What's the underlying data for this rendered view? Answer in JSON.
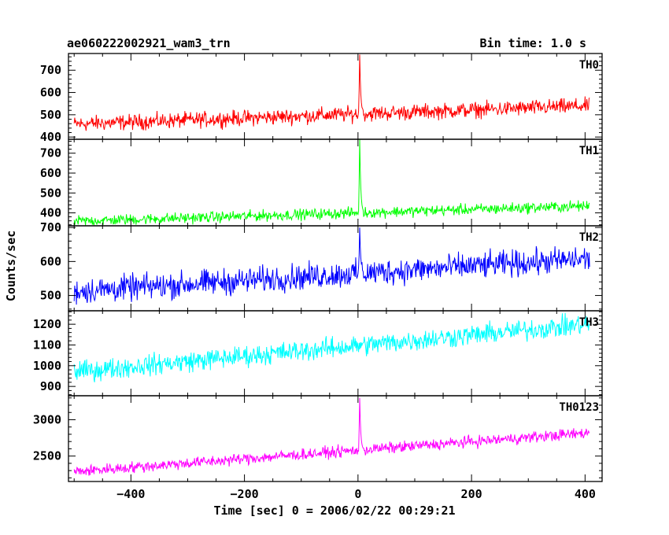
{
  "header": {
    "left": "ae060222002921_wam3_trn",
    "right": "Bin time: 1.0 s"
  },
  "chart_data": {
    "type": "line",
    "title": "ae060222002921_wam3_trn",
    "subtitle": "Bin time: 1.0 s",
    "xlabel": "Time [sec] 0 = 2006/02/22 00:29:21",
    "ylabel": "Counts/sec",
    "xlim": [
      -510,
      430
    ],
    "x_ticks": [
      -400,
      -200,
      0,
      200,
      400
    ],
    "x_tick_labels": [
      "−400",
      "−200",
      "0",
      "200",
      "400"
    ],
    "x_start": -500,
    "x_end": 408,
    "legend": "none",
    "panels": [
      {
        "label": "TH0",
        "color": "#ff0000",
        "ylim": [
          390,
          775
        ],
        "y_ticks": [
          400,
          500,
          600,
          700
        ],
        "y_tick_labels": [
          "400",
          "500",
          "600",
          "700"
        ],
        "baseline_start": 458,
        "baseline_end": 540,
        "noise_amplitude": 38,
        "peak_x": 3,
        "peak_value": 770
      },
      {
        "label": "TH1",
        "color": "#00ff00",
        "ylim": [
          335,
          770
        ],
        "y_ticks": [
          400,
          500,
          600,
          700
        ],
        "y_tick_labels": [
          "400",
          "500",
          "600",
          "700"
        ],
        "baseline_start": 358,
        "baseline_end": 435,
        "noise_amplitude": 30,
        "peak_x": 3,
        "peak_value": 770
      },
      {
        "label": "TH2",
        "color": "#0000ff",
        "ylim": [
          455,
          705
        ],
        "y_ticks": [
          500,
          600,
          700
        ],
        "y_tick_labels": [
          "500",
          "600",
          "700"
        ],
        "baseline_start": 512,
        "baseline_end": 608,
        "noise_amplitude": 42,
        "peak_x": 3,
        "peak_value": 700
      },
      {
        "label": "TH3",
        "color": "#00ffff",
        "ylim": [
          855,
          1265
        ],
        "y_ticks": [
          900,
          1000,
          1100,
          1200
        ],
        "y_tick_labels": [
          "900",
          "1000",
          "1100",
          "1200"
        ],
        "baseline_start": 970,
        "baseline_end": 1200,
        "noise_amplitude": 55,
        "peak_x": 3,
        "peak_value": 1060
      },
      {
        "label": "TH0123",
        "color": "#ff00ff",
        "ylim": [
          2150,
          3330
        ],
        "y_ticks": [
          2500,
          3000
        ],
        "y_tick_labels": [
          "2500",
          "3000"
        ],
        "baseline_start": 2285,
        "baseline_end": 2820,
        "noise_amplitude": 85,
        "peak_x": 3,
        "peak_value": 3300
      }
    ]
  }
}
